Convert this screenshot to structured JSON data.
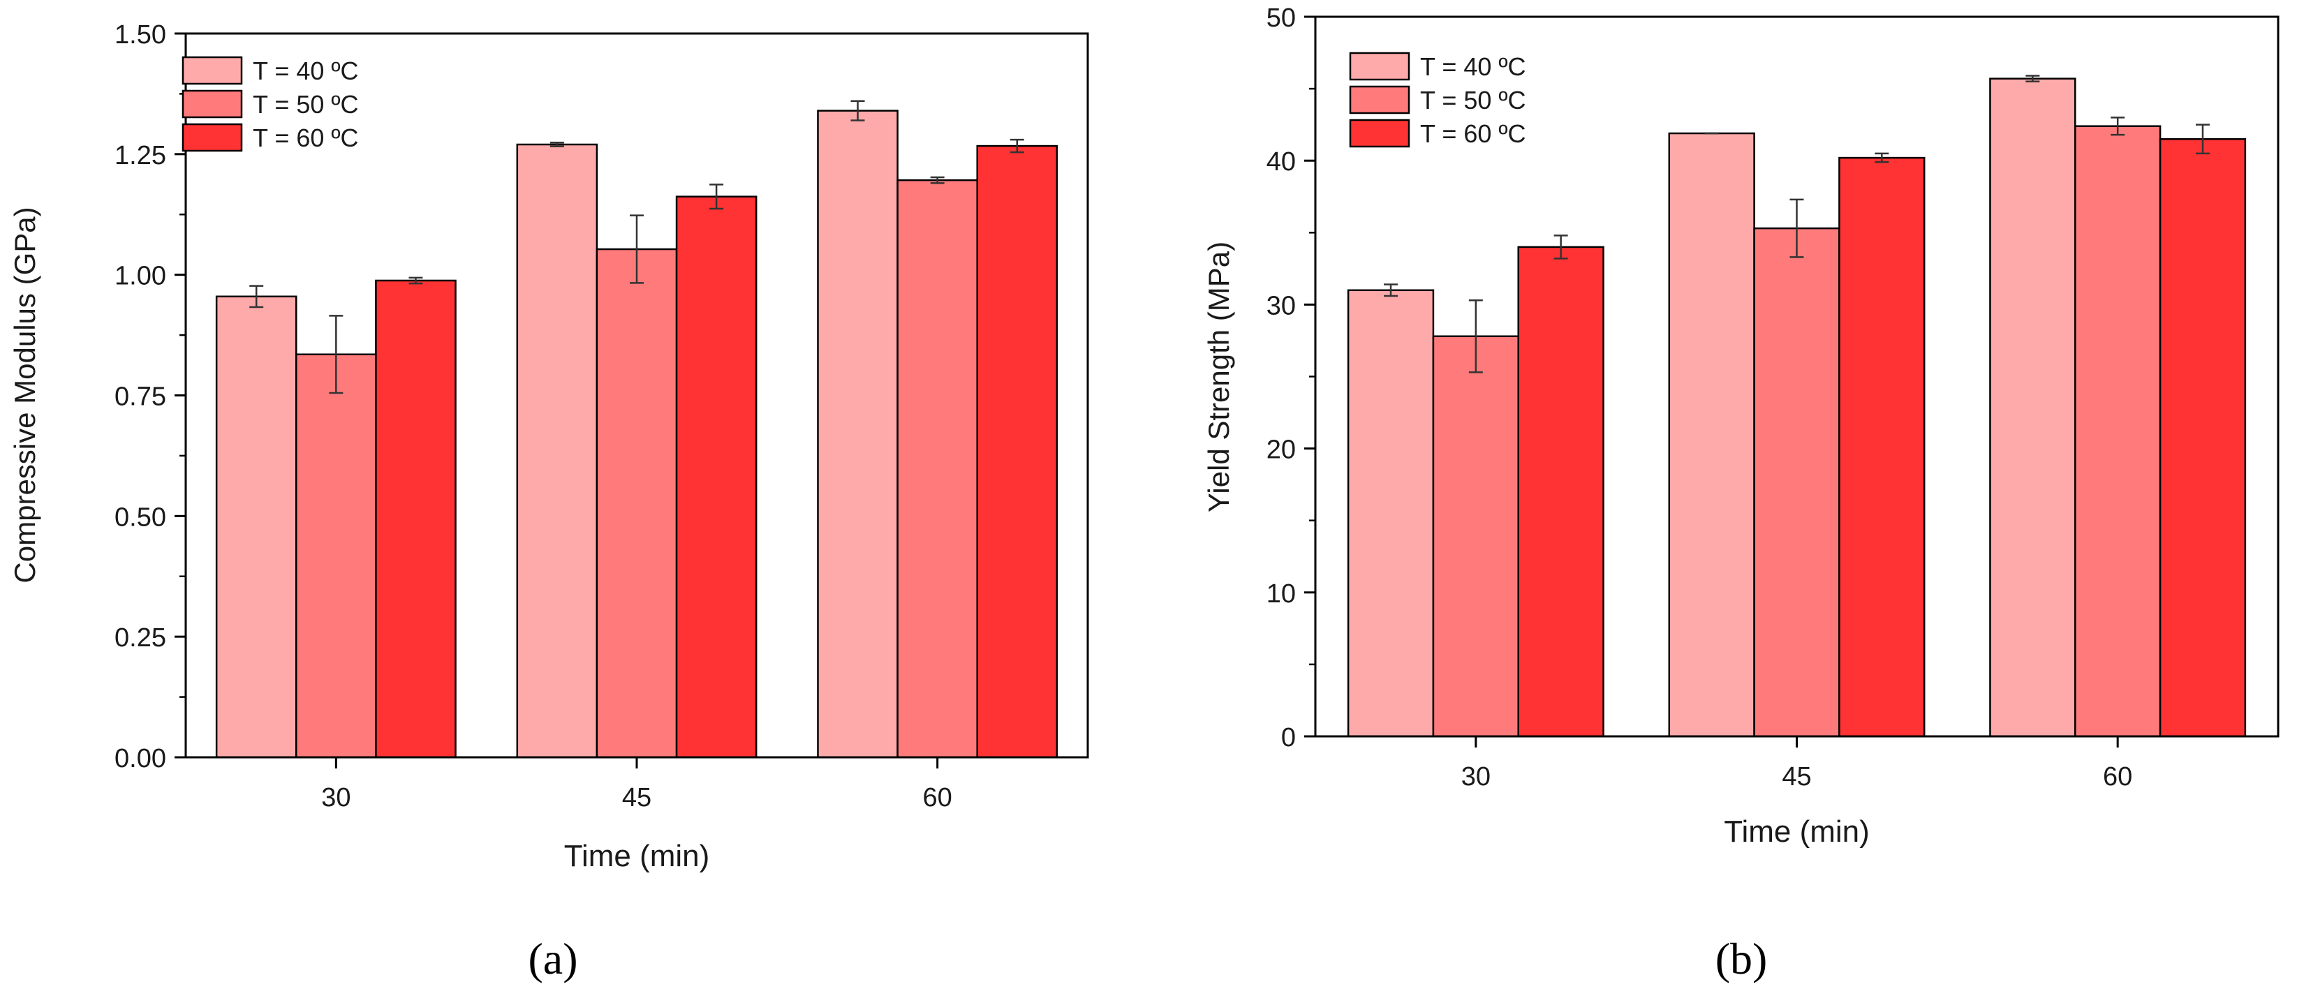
{
  "colors": {
    "t40": "#ffaaaa",
    "t50": "#ff7b7b",
    "t60": "#ff3333",
    "stroke": "#000000",
    "error_bar": "#333333"
  },
  "chart_data": [
    {
      "type": "bar",
      "panel_label": "(a)",
      "title": "",
      "xlabel": "Time (min)",
      "ylabel": "Compressive Modulus (GPa)",
      "categories": [
        "30",
        "45",
        "60"
      ],
      "ylim": [
        0,
        1.5
      ],
      "yticks": [
        "0.00",
        "0.25",
        "0.50",
        "0.75",
        "1.00",
        "1.25",
        "1.50"
      ],
      "legend_position": "top-left",
      "series": [
        {
          "name": "T = 40 ºC",
          "color_key": "t40",
          "values": [
            0.955,
            1.27,
            1.34
          ],
          "errors": [
            0.022,
            0.004,
            0.02
          ]
        },
        {
          "name": "T = 50 ºC",
          "color_key": "t50",
          "values": [
            0.835,
            1.053,
            1.196
          ],
          "errors": [
            0.08,
            0.07,
            0.006
          ]
        },
        {
          "name": "T = 60 ºC",
          "color_key": "t60",
          "values": [
            0.988,
            1.162,
            1.267
          ],
          "errors": [
            0.006,
            0.025,
            0.013
          ]
        }
      ]
    },
    {
      "type": "bar",
      "panel_label": "(b)",
      "title": "",
      "xlabel": "Time (min)",
      "ylabel": "Yield Strength (MPa)",
      "categories": [
        "30",
        "45",
        "60"
      ],
      "ylim": [
        0,
        50
      ],
      "yticks": [
        "0",
        "10",
        "20",
        "30",
        "40",
        "50"
      ],
      "legend_position": "top-left",
      "series": [
        {
          "name": "T = 40 ºC",
          "color_key": "t40",
          "values": [
            31.0,
            41.9,
            45.7
          ],
          "errors": [
            0.4,
            0.0,
            0.2
          ]
        },
        {
          "name": "T = 50 ºC",
          "color_key": "t50",
          "values": [
            27.8,
            35.3,
            42.4
          ],
          "errors": [
            2.5,
            2.0,
            0.6
          ]
        },
        {
          "name": "T = 60 ºC",
          "color_key": "t60",
          "values": [
            34.0,
            40.2,
            41.5
          ],
          "errors": [
            0.8,
            0.3,
            1.0
          ]
        }
      ]
    }
  ]
}
